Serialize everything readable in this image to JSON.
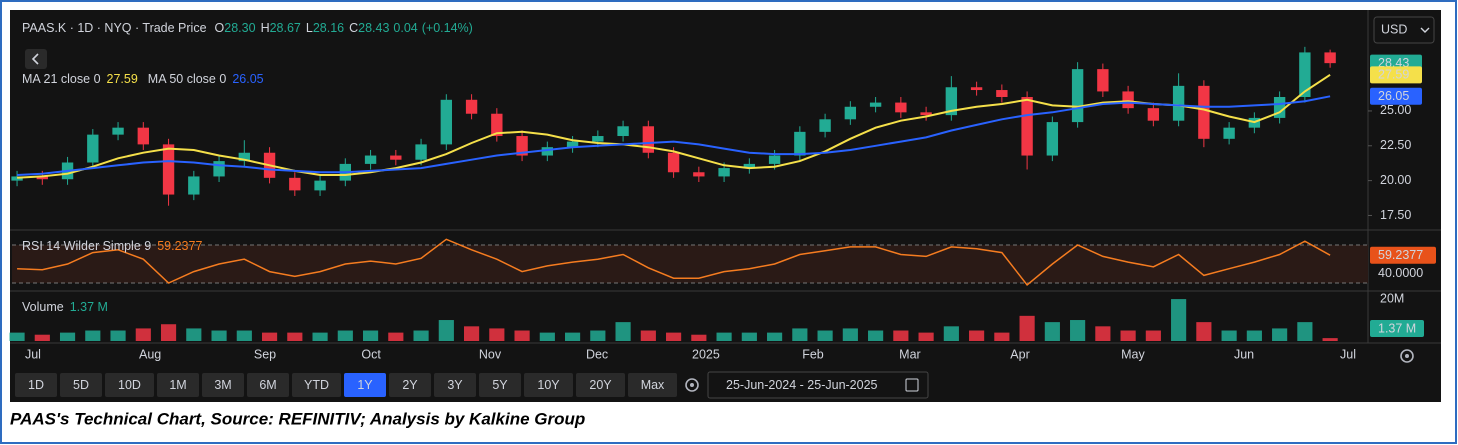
{
  "chart_data": [
    {
      "type": "candlestick",
      "title": "PAAS.K · 1D · NYQ · Trade Price",
      "ohlc_labels": [
        {
          "label": "O",
          "value": "28.30"
        },
        {
          "label": "H",
          "value": "28.67"
        },
        {
          "label": "L",
          "value": "28.16"
        },
        {
          "label": "C",
          "value": "28.43"
        }
      ],
      "change": "0.04",
      "change_pct": "(+0.14%)",
      "currency": "USD",
      "up_color": "#22ab94",
      "down_color": "#f23645",
      "xlim": [
        -0.2,
        53.5
      ],
      "xticks": [
        {
          "value": 0.63,
          "label": "Jul"
        },
        {
          "value": 5.27,
          "label": "Aug"
        },
        {
          "value": 9.82,
          "label": "Sep"
        },
        {
          "value": 14.02,
          "label": "Oct"
        },
        {
          "value": 18.73,
          "label": "Nov"
        },
        {
          "value": 22.97,
          "label": "Dec"
        },
        {
          "value": 27.28,
          "label": "2025"
        },
        {
          "value": 31.52,
          "label": "Feb"
        },
        {
          "value": 35.36,
          "label": "Mar"
        },
        {
          "value": 39.72,
          "label": "Apr"
        },
        {
          "value": 44.19,
          "label": "May"
        },
        {
          "value": 48.59,
          "label": "Jun"
        },
        {
          "value": 52.71,
          "label": "Jul"
        }
      ],
      "ylim": [
        16.6,
        32.1
      ],
      "yticks": [
        {
          "value": 17.5,
          "label": "17.50"
        },
        {
          "value": 20,
          "label": "20.00"
        },
        {
          "value": 22.5,
          "label": "22.50"
        },
        {
          "value": 25,
          "label": "25.00"
        }
      ],
      "open": [
        20.0,
        20.3,
        20.1,
        21.3,
        23.3,
        23.8,
        22.6,
        19.0,
        20.3,
        21.4,
        22.0,
        20.2,
        19.3,
        20.0,
        21.2,
        21.8,
        21.5,
        22.6,
        25.8,
        24.8,
        23.2,
        21.8,
        22.4,
        22.8,
        23.2,
        23.9,
        22.0,
        20.6,
        20.3,
        20.9,
        21.2,
        21.8,
        23.5,
        24.4,
        25.3,
        25.6,
        24.9,
        24.7,
        26.7,
        26.5,
        26.0,
        21.8,
        24.2,
        28.0,
        26.4,
        25.2,
        24.3,
        26.8,
        23.0,
        23.8,
        24.5,
        26.0,
        29.2
      ],
      "high": [
        20.7,
        20.7,
        21.7,
        23.7,
        24.2,
        24.2,
        23.0,
        20.7,
        21.8,
        22.9,
        22.4,
        20.6,
        20.4,
        21.6,
        22.2,
        22.2,
        23.0,
        26.2,
        26.2,
        25.2,
        23.6,
        22.8,
        23.2,
        23.6,
        24.3,
        24.3,
        22.4,
        21.0,
        21.3,
        21.6,
        22.2,
        23.9,
        24.8,
        25.7,
        26.0,
        26.0,
        25.3,
        27.5,
        27.1,
        26.9,
        26.4,
        24.6,
        28.5,
        28.4,
        26.8,
        25.6,
        27.7,
        27.2,
        24.2,
        24.9,
        26.4,
        29.6,
        29.4
      ],
      "low": [
        19.6,
        19.7,
        19.7,
        20.9,
        22.9,
        22.2,
        18.2,
        18.6,
        19.9,
        21.0,
        19.8,
        18.9,
        18.9,
        19.6,
        20.8,
        21.1,
        21.1,
        22.2,
        24.4,
        22.8,
        21.4,
        21.4,
        22.0,
        22.4,
        22.8,
        21.6,
        20.2,
        19.9,
        19.9,
        20.5,
        20.8,
        21.4,
        23.1,
        24.0,
        24.9,
        24.5,
        24.3,
        24.3,
        26.1,
        25.6,
        20.8,
        21.4,
        23.8,
        26.0,
        24.8,
        23.9,
        23.9,
        22.4,
        22.6,
        23.4,
        24.1,
        25.6,
        28.1
      ],
      "close": [
        20.3,
        20.1,
        21.3,
        23.3,
        23.8,
        22.6,
        19.0,
        20.3,
        21.4,
        22.0,
        20.2,
        19.3,
        20.0,
        21.2,
        21.8,
        21.5,
        22.6,
        25.8,
        24.8,
        23.2,
        21.8,
        22.4,
        22.8,
        23.2,
        23.9,
        22.0,
        20.6,
        20.3,
        20.9,
        21.2,
        21.8,
        23.5,
        24.4,
        25.3,
        25.6,
        24.9,
        24.7,
        26.7,
        26.5,
        26.0,
        21.8,
        24.2,
        28.0,
        26.4,
        25.2,
        24.3,
        26.8,
        23.0,
        23.8,
        24.5,
        26.0,
        29.2,
        28.43
      ],
      "series": [
        {
          "name": "MA 21 close 0",
          "color": "#f5e04a",
          "values": [
            20.2,
            20.3,
            20.5,
            21.0,
            21.6,
            22.0,
            22.3,
            22.2,
            21.8,
            21.5,
            21.1,
            20.7,
            20.4,
            20.4,
            20.6,
            20.9,
            21.3,
            21.9,
            22.7,
            23.4,
            23.5,
            23.3,
            22.9,
            22.7,
            22.6,
            22.4,
            22.1,
            21.6,
            21.1,
            20.9,
            21.0,
            21.4,
            22.1,
            23.0,
            23.8,
            24.3,
            24.6,
            25.0,
            25.3,
            25.5,
            25.8,
            25.4,
            25.3,
            25.6,
            25.7,
            25.5,
            25.4,
            25.1,
            24.6,
            24.2,
            24.9,
            26.4,
            27.59
          ]
        },
        {
          "name": "MA 50 close 0",
          "color": "#2962ff",
          "values": [
            20.4,
            20.5,
            20.7,
            20.9,
            21.1,
            21.3,
            21.4,
            21.3,
            21.1,
            21.0,
            20.8,
            20.7,
            20.6,
            20.6,
            20.7,
            20.8,
            20.9,
            21.2,
            21.5,
            21.8,
            22.0,
            22.2,
            22.4,
            22.5,
            22.6,
            22.7,
            22.8,
            22.6,
            22.3,
            22.0,
            21.9,
            21.9,
            22.0,
            22.2,
            22.5,
            22.8,
            23.1,
            23.6,
            24.0,
            24.4,
            24.7,
            24.9,
            25.2,
            25.5,
            25.6,
            25.5,
            25.4,
            25.3,
            25.3,
            25.4,
            25.5,
            25.7,
            26.05
          ]
        }
      ]
    },
    {
      "type": "line",
      "title": "RSI 14 Wilder Simple 9",
      "color": "#f57c20",
      "ylim": [
        22.6,
        83.7
      ],
      "yticks": [
        {
          "value": 40,
          "label": "40.0000"
        }
      ],
      "bands": [
        30,
        70
      ],
      "values": [
        45,
        44,
        50,
        62,
        65,
        55,
        30,
        42,
        50,
        55,
        42,
        37,
        42,
        50,
        53,
        50,
        56,
        76,
        65,
        55,
        42,
        48,
        52,
        55,
        60,
        46,
        35,
        35,
        42,
        45,
        50,
        60,
        64,
        68,
        68,
        60,
        58,
        68,
        66,
        62,
        28,
        50,
        70,
        58,
        52,
        47,
        60,
        38,
        45,
        52,
        60,
        74,
        59.2377
      ]
    },
    {
      "type": "bar",
      "title": "Volume",
      "ylim": [
        0,
        22.9
      ],
      "yticks": [
        {
          "value": 20,
          "label": "20M"
        }
      ],
      "values": [
        4,
        3,
        4,
        5,
        5,
        6,
        8,
        6,
        5,
        5,
        4,
        4,
        4,
        5,
        5,
        4,
        5,
        10,
        7,
        6,
        5,
        4,
        4,
        5,
        9,
        5,
        4,
        3,
        4,
        4,
        4,
        6,
        5,
        6,
        5,
        5,
        4,
        7,
        5,
        4,
        12,
        9,
        10,
        7,
        5,
        5,
        20,
        9,
        5,
        5,
        6,
        9,
        1.37
      ],
      "value_labels": [
        null,
        null,
        null,
        null,
        null,
        null,
        null,
        null,
        null,
        null,
        null,
        null,
        null,
        null,
        null,
        null,
        null,
        null,
        null,
        null,
        null,
        null,
        null,
        null,
        null,
        null,
        null,
        null,
        null,
        null,
        null,
        null,
        null,
        null,
        null,
        null,
        null,
        null,
        null,
        null,
        null,
        null,
        null,
        null,
        null,
        null,
        null,
        null,
        null,
        null,
        null,
        null,
        "1.37 M"
      ]
    }
  ],
  "toolbar": {
    "ranges": [
      "1D",
      "5D",
      "10D",
      "1M",
      "3M",
      "6M",
      "YTD",
      "1Y",
      "2Y",
      "3Y",
      "5Y",
      "10Y",
      "20Y",
      "Max"
    ],
    "selected_index": 7,
    "date_range": "25-Jun-2024  -  25-Jun-2025"
  },
  "caption": "PAAS's Technical Chart, Source: REFINITIV; Analysis by Kalkine Group"
}
